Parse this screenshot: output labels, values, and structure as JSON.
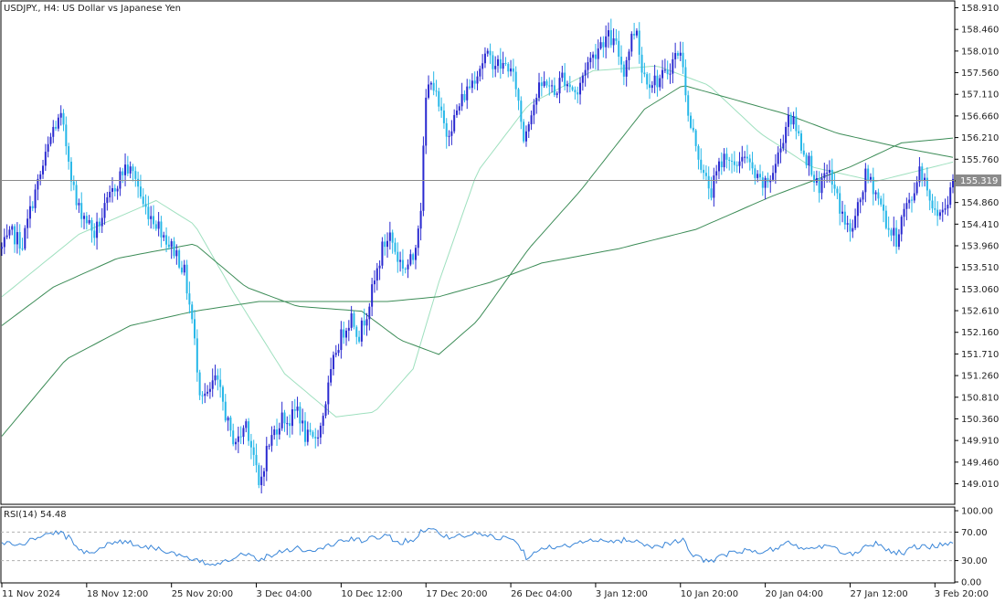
{
  "window": {
    "title": "USDJPY., H4:  US Dollar vs Japanese Yen"
  },
  "price_axis": {
    "labels": [
      "158.910",
      "158.460",
      "158.010",
      "157.560",
      "157.110",
      "156.660",
      "156.210",
      "155.760",
      "155.310",
      "154.860",
      "154.410",
      "153.960",
      "153.510",
      "153.060",
      "152.610",
      "152.160",
      "151.710",
      "151.260",
      "150.810",
      "150.360",
      "149.910",
      "149.460",
      "149.010"
    ]
  },
  "current_price": {
    "label": "155.319"
  },
  "rsi": {
    "title": "RSI(14) 54.48",
    "axis_labels": [
      "100.00",
      "70.00",
      "30.00",
      "0.00"
    ]
  },
  "time_axis": {
    "labels": [
      "11 Nov 2024",
      "18 Nov 12:00",
      "25 Nov 20:00",
      "3 Dec 04:00",
      "10 Dec 12:00",
      "17 Dec 20:00",
      "26 Dec 04:00",
      "3 Jan 12:00",
      "10 Jan 20:00",
      "20 Jan 04:00",
      "27 Jan 12:00",
      "3 Feb 20:00"
    ]
  },
  "colors": {
    "bull": "#2a2ad0",
    "bear": "#26b7e8",
    "ma_fast": "#9fe0bf",
    "ma_slow": "#3c8c57",
    "rsi_line": "#3a86d8",
    "price_line": "#8b8b8b",
    "price_label_bg": "#8b8b8b",
    "grid": "#000000"
  },
  "chart_data": [
    {
      "type": "candlestick",
      "symbol": "USDJPY.",
      "timeframe": "H4",
      "title": "USDJPY., H4:  US Dollar vs Japanese Yen",
      "ylim": [
        148.5,
        159.1
      ],
      "x_ticks": [
        "11 Nov 2024",
        "18 Nov 12:00",
        "25 Nov 20:00",
        "3 Dec 04:00",
        "10 Dec 12:00",
        "17 Dec 20:00",
        "26 Dec 04:00",
        "3 Jan 12:00",
        "10 Jan 20:00",
        "20 Jan 04:00",
        "27 Jan 12:00",
        "3 Feb 20:00"
      ],
      "close_path": [
        [
          0,
          153.9
        ],
        [
          4,
          154.2
        ],
        [
          8,
          154.0
        ],
        [
          12,
          154.9
        ],
        [
          16,
          155.6
        ],
        [
          20,
          156.4
        ],
        [
          23,
          156.6
        ],
        [
          26,
          155.8
        ],
        [
          29,
          154.8
        ],
        [
          32,
          154.6
        ],
        [
          36,
          154.2
        ],
        [
          40,
          154.7
        ],
        [
          44,
          155.2
        ],
        [
          48,
          155.6
        ],
        [
          52,
          155.4
        ],
        [
          55,
          154.8
        ],
        [
          58,
          154.6
        ],
        [
          62,
          154.3
        ],
        [
          65,
          154.0
        ],
        [
          68,
          153.8
        ],
        [
          71,
          153.4
        ],
        [
          74,
          152.4
        ],
        [
          77,
          151.0
        ],
        [
          80,
          150.8
        ],
        [
          83,
          151.2
        ],
        [
          86,
          150.7
        ],
        [
          89,
          150.0
        ],
        [
          92,
          149.9
        ],
        [
          95,
          150.3
        ],
        [
          98,
          149.6
        ],
        [
          100,
          148.9
        ],
        [
          103,
          149.7
        ],
        [
          106,
          150.1
        ],
        [
          109,
          150.4
        ],
        [
          112,
          150.3
        ],
        [
          115,
          150.6
        ],
        [
          118,
          150.0
        ],
        [
          121,
          149.9
        ],
        [
          124,
          150.2
        ],
        [
          127,
          151.0
        ],
        [
          130,
          151.8
        ],
        [
          133,
          152.2
        ],
        [
          136,
          152.5
        ],
        [
          139,
          152.1
        ],
        [
          142,
          152.6
        ],
        [
          145,
          153.2
        ],
        [
          148,
          153.9
        ],
        [
          151,
          154.2
        ],
        [
          154,
          153.7
        ],
        [
          157,
          153.5
        ],
        [
          160,
          153.7
        ],
        [
          163,
          154.8
        ],
        [
          165,
          157.0
        ],
        [
          167,
          157.5
        ],
        [
          170,
          156.8
        ],
        [
          173,
          156.3
        ],
        [
          176,
          156.6
        ],
        [
          179,
          157.0
        ],
        [
          182,
          157.3
        ],
        [
          185,
          157.6
        ],
        [
          188,
          157.9
        ],
        [
          191,
          157.8
        ],
        [
          194,
          157.7
        ],
        [
          197,
          157.7
        ],
        [
          200,
          157.3
        ],
        [
          203,
          156.2
        ],
        [
          206,
          156.8
        ],
        [
          209,
          157.2
        ],
        [
          212,
          157.4
        ],
        [
          215,
          157.1
        ],
        [
          218,
          157.5
        ],
        [
          221,
          157.3
        ],
        [
          224,
          157.1
        ],
        [
          227,
          157.7
        ],
        [
          230,
          157.9
        ],
        [
          233,
          158.2
        ],
        [
          236,
          158.3
        ],
        [
          239,
          158.1
        ],
        [
          242,
          157.6
        ],
        [
          245,
          158.3
        ],
        [
          247,
          158.5
        ],
        [
          249,
          157.6
        ],
        [
          252,
          157.4
        ],
        [
          255,
          157.4
        ],
        [
          258,
          157.5
        ],
        [
          260,
          157.7
        ],
        [
          263,
          158.0
        ],
        [
          265,
          157.8
        ],
        [
          267,
          156.6
        ],
        [
          270,
          156.1
        ],
        [
          273,
          155.4
        ],
        [
          276,
          155.1
        ],
        [
          279,
          155.6
        ],
        [
          282,
          155.9
        ],
        [
          285,
          155.5
        ],
        [
          288,
          155.9
        ],
        [
          291,
          155.6
        ],
        [
          294,
          155.3
        ],
        [
          297,
          155.2
        ],
        [
          300,
          155.5
        ],
        [
          303,
          156.0
        ],
        [
          306,
          156.7
        ],
        [
          309,
          156.4
        ],
        [
          312,
          155.9
        ],
        [
          315,
          155.6
        ],
        [
          318,
          155.0
        ],
        [
          321,
          155.6
        ],
        [
          324,
          155.1
        ],
        [
          327,
          154.6
        ],
        [
          330,
          154.2
        ],
        [
          333,
          154.7
        ],
        [
          336,
          155.4
        ],
        [
          339,
          155.2
        ],
        [
          342,
          154.8
        ],
        [
          345,
          154.3
        ],
        [
          348,
          154.1
        ],
        [
          351,
          154.7
        ],
        [
          354,
          154.9
        ],
        [
          357,
          155.6
        ],
        [
          360,
          155.2
        ],
        [
          363,
          154.6
        ],
        [
          366,
          154.7
        ],
        [
          369,
          155.1
        ],
        [
          370,
          155.32
        ]
      ],
      "moving_averages": [
        {
          "kind": "fast",
          "path": [
            [
              0,
              152.9
            ],
            [
              30,
              154.2
            ],
            [
              60,
              154.9
            ],
            [
              75,
              154.4
            ],
            [
              90,
              153.0
            ],
            [
              110,
              151.3
            ],
            [
              130,
              150.4
            ],
            [
              145,
              150.5
            ],
            [
              160,
              151.4
            ],
            [
              170,
              153.2
            ],
            [
              185,
              155.5
            ],
            [
              205,
              156.9
            ],
            [
              230,
              157.6
            ],
            [
              255,
              157.7
            ],
            [
              275,
              157.3
            ],
            [
              295,
              156.3
            ],
            [
              315,
              155.6
            ],
            [
              340,
              155.3
            ],
            [
              370,
              155.7
            ]
          ]
        },
        {
          "kind": "slow",
          "path": [
            [
              0,
              152.3
            ],
            [
              20,
              153.1
            ],
            [
              45,
              153.7
            ],
            [
              75,
              154.0
            ],
            [
              95,
              153.1
            ],
            [
              115,
              152.7
            ],
            [
              140,
              152.6
            ],
            [
              155,
              152.0
            ],
            [
              170,
              151.7
            ],
            [
              185,
              152.4
            ],
            [
              205,
              153.9
            ],
            [
              225,
              155.1
            ],
            [
              250,
              156.8
            ],
            [
              265,
              157.3
            ],
            [
              285,
              157.0
            ],
            [
              305,
              156.7
            ],
            [
              325,
              156.3
            ],
            [
              350,
              156.0
            ],
            [
              370,
              155.8
            ]
          ]
        },
        {
          "kind": "long",
          "path": [
            [
              0,
              150.0
            ],
            [
              25,
              151.6
            ],
            [
              50,
              152.3
            ],
            [
              75,
              152.6
            ],
            [
              100,
              152.8
            ],
            [
              125,
              152.8
            ],
            [
              150,
              152.8
            ],
            [
              170,
              152.9
            ],
            [
              190,
              153.2
            ],
            [
              210,
              153.6
            ],
            [
              240,
              153.9
            ],
            [
              270,
              154.3
            ],
            [
              300,
              155.0
            ],
            [
              330,
              155.6
            ],
            [
              350,
              156.1
            ],
            [
              370,
              156.2
            ]
          ]
        }
      ],
      "current_price": 155.319
    },
    {
      "type": "line",
      "name": "RSI(14) 54.48",
      "ylim": [
        0,
        100
      ],
      "levels": [
        30,
        70
      ],
      "last_value": 54.48,
      "path": [
        [
          0,
          55
        ],
        [
          8,
          52
        ],
        [
          15,
          65
        ],
        [
          22,
          70
        ],
        [
          26,
          62
        ],
        [
          30,
          45
        ],
        [
          35,
          42
        ],
        [
          40,
          50
        ],
        [
          45,
          58
        ],
        [
          50,
          55
        ],
        [
          55,
          50
        ],
        [
          60,
          48
        ],
        [
          65,
          42
        ],
        [
          70,
          35
        ],
        [
          75,
          30
        ],
        [
          80,
          25
        ],
        [
          85,
          28
        ],
        [
          90,
          35
        ],
        [
          95,
          40
        ],
        [
          100,
          32
        ],
        [
          105,
          38
        ],
        [
          110,
          45
        ],
        [
          115,
          48
        ],
        [
          120,
          42
        ],
        [
          125,
          48
        ],
        [
          130,
          55
        ],
        [
          135,
          60
        ],
        [
          140,
          58
        ],
        [
          145,
          62
        ],
        [
          150,
          65
        ],
        [
          155,
          55
        ],
        [
          160,
          60
        ],
        [
          163,
          70
        ],
        [
          166,
          78
        ],
        [
          170,
          68
        ],
        [
          175,
          62
        ],
        [
          180,
          65
        ],
        [
          185,
          68
        ],
        [
          190,
          64
        ],
        [
          195,
          62
        ],
        [
          200,
          60
        ],
        [
          204,
          35
        ],
        [
          208,
          45
        ],
        [
          212,
          50
        ],
        [
          216,
          46
        ],
        [
          220,
          52
        ],
        [
          225,
          55
        ],
        [
          230,
          58
        ],
        [
          235,
          56
        ],
        [
          240,
          58
        ],
        [
          245,
          60
        ],
        [
          250,
          52
        ],
        [
          255,
          50
        ],
        [
          260,
          55
        ],
        [
          265,
          58
        ],
        [
          268,
          40
        ],
        [
          272,
          32
        ],
        [
          276,
          30
        ],
        [
          280,
          36
        ],
        [
          285,
          42
        ],
        [
          290,
          44
        ],
        [
          295,
          40
        ],
        [
          300,
          46
        ],
        [
          305,
          55
        ],
        [
          310,
          50
        ],
        [
          315,
          45
        ],
        [
          320,
          52
        ],
        [
          325,
          44
        ],
        [
          330,
          38
        ],
        [
          335,
          48
        ],
        [
          340,
          55
        ],
        [
          345,
          45
        ],
        [
          350,
          40
        ],
        [
          355,
          50
        ],
        [
          360,
          48
        ],
        [
          365,
          52
        ],
        [
          370,
          54.48
        ]
      ]
    }
  ]
}
